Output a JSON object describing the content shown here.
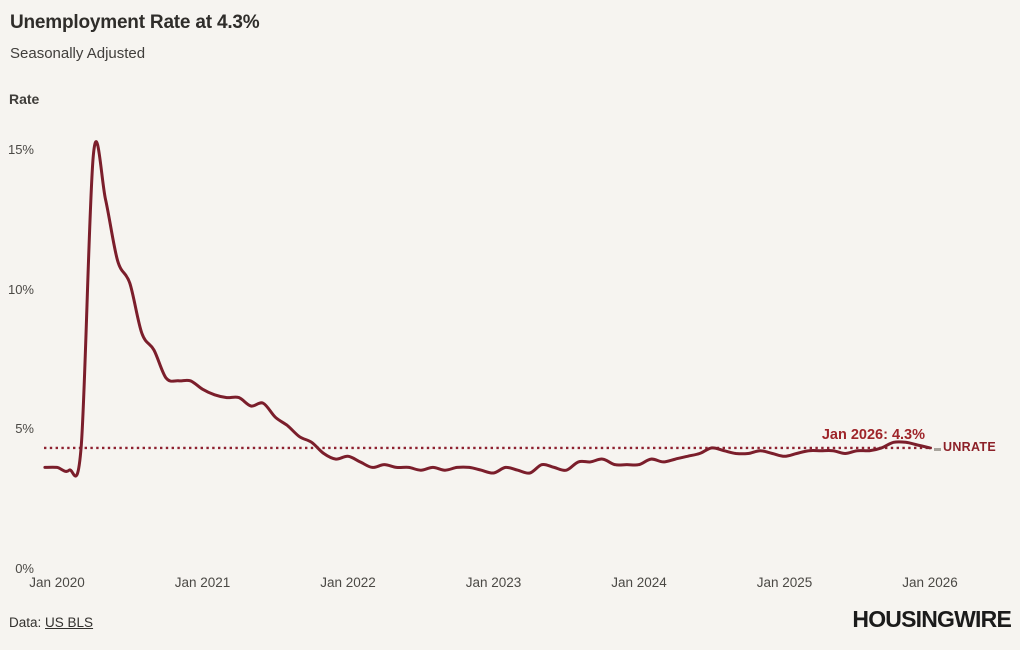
{
  "header": {
    "title": "Unemployment Rate at 4.3%",
    "subtitle": "Seasonally Adjusted"
  },
  "chart_data": {
    "type": "line",
    "title": "Unemployment Rate at 4.3%",
    "subtitle": "Seasonally Adjusted",
    "ylabel": "Rate",
    "xlabel": "",
    "ylim": [
      0,
      15
    ],
    "grid": "off",
    "legend_position": "inline-right-of-line-end",
    "series": [
      {
        "name": "UNRATE",
        "color": "#7b1e2b",
        "frequency": "monthly",
        "start_month": "Dec 2019",
        "end_month": "Jan 2026",
        "values": [
          3.6,
          3.6,
          3.5,
          4.4,
          14.8,
          13.2,
          11.0,
          10.2,
          8.4,
          7.8,
          6.8,
          6.7,
          6.7,
          6.4,
          6.2,
          6.1,
          6.1,
          5.8,
          5.9,
          5.4,
          5.1,
          4.7,
          4.5,
          4.1,
          3.9,
          4.0,
          3.8,
          3.6,
          3.7,
          3.6,
          3.6,
          3.5,
          3.6,
          3.5,
          3.6,
          3.6,
          3.5,
          3.4,
          3.6,
          3.5,
          3.4,
          3.7,
          3.6,
          3.5,
          3.8,
          3.8,
          3.9,
          3.7,
          3.7,
          3.7,
          3.9,
          3.8,
          3.9,
          4.0,
          4.1,
          4.3,
          4.2,
          4.1,
          4.1,
          4.2,
          4.1,
          4.0,
          4.1,
          4.2,
          4.2,
          4.2,
          4.1,
          4.2,
          4.2,
          4.3,
          4.5,
          4.5,
          4.4,
          4.3
        ]
      }
    ],
    "x_ticks": [
      {
        "label": "Jan 2020",
        "month_index": 1
      },
      {
        "label": "Jan 2021",
        "month_index": 13
      },
      {
        "label": "Jan 2022",
        "month_index": 25
      },
      {
        "label": "Jan 2023",
        "month_index": 37
      },
      {
        "label": "Jan 2024",
        "month_index": 49
      },
      {
        "label": "Jan 2025",
        "month_index": 61
      },
      {
        "label": "Jan 2026",
        "month_index": 73
      }
    ],
    "y_ticks": [
      {
        "label": "15%",
        "value": 15
      },
      {
        "label": "10%",
        "value": 10
      },
      {
        "label": "5%",
        "value": 5
      },
      {
        "label": "0%",
        "value": 0
      }
    ],
    "reference_line": {
      "value": 4.3,
      "style": "dotted",
      "color": "#8e2130"
    },
    "annotation": {
      "text": "Jan 2026: 4.3%",
      "color": "#9e2429"
    },
    "series_label": {
      "text": "UNRATE",
      "color": "#8c2028"
    }
  },
  "footer": {
    "source_prefix": "Data: ",
    "source_link": "US BLS",
    "brand": "HOUSINGWIRE"
  },
  "colors": {
    "background": "#f6f4f0",
    "title_text": "#2f2d2a",
    "axis_text": "#4b4945",
    "line": "#7b1e2b",
    "dotted": "#8e2130",
    "annotation": "#9e2429",
    "brand": "#1b1b1b"
  }
}
